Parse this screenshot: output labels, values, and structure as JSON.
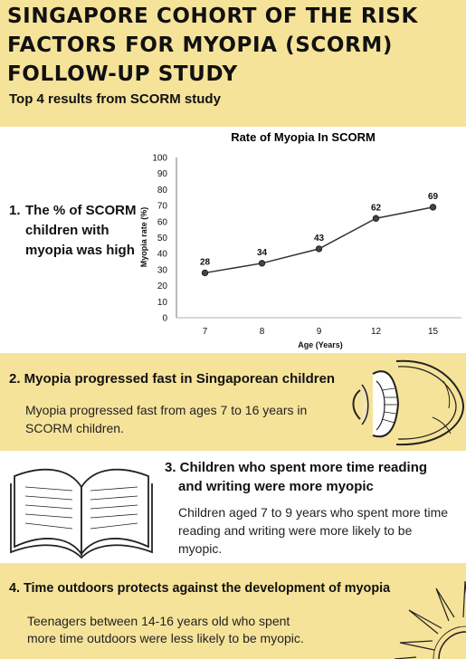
{
  "header": {
    "title": "Singapore Cohort of the Risk Factors for Myopia (SCORM) Follow-up Study",
    "subtitle": "Top 4 results from SCORM study"
  },
  "section1": {
    "number": "1.",
    "line1": "The % of SCORM",
    "line2": "children with",
    "line3": "myopia was high"
  },
  "chart_data": {
    "type": "line",
    "title": "Rate of Myopia In SCORM",
    "xlabel": "Age (Years)",
    "ylabel": "Myopia rate (%)",
    "categories": [
      "7",
      "8",
      "9",
      "12",
      "15"
    ],
    "values": [
      28,
      34,
      43,
      62,
      69
    ],
    "ylim": [
      0,
      100
    ],
    "yticks": [
      "0",
      "10",
      "20",
      "30",
      "40",
      "50",
      "60",
      "70",
      "80",
      "90",
      "100"
    ],
    "grid": false,
    "color": "#333333"
  },
  "section2": {
    "heading": "2. Myopia progressed fast in Singaporean children",
    "text": "Myopia progressed fast from ages 7 to 16 years in SCORM children."
  },
  "section3": {
    "heading_line1": "3. Children who spent more time reading",
    "heading_line2": "and writing were more myopic",
    "text": "Children aged 7 to 9 years who spent more time reading and writing were more likely to be myopic."
  },
  "section4": {
    "heading": "4. Time outdoors protects against the development of myopia",
    "text_line1": "Teenagers between 14-16 years old who spent",
    "text_line2": "more time outdoors were less likely to be myopic."
  }
}
